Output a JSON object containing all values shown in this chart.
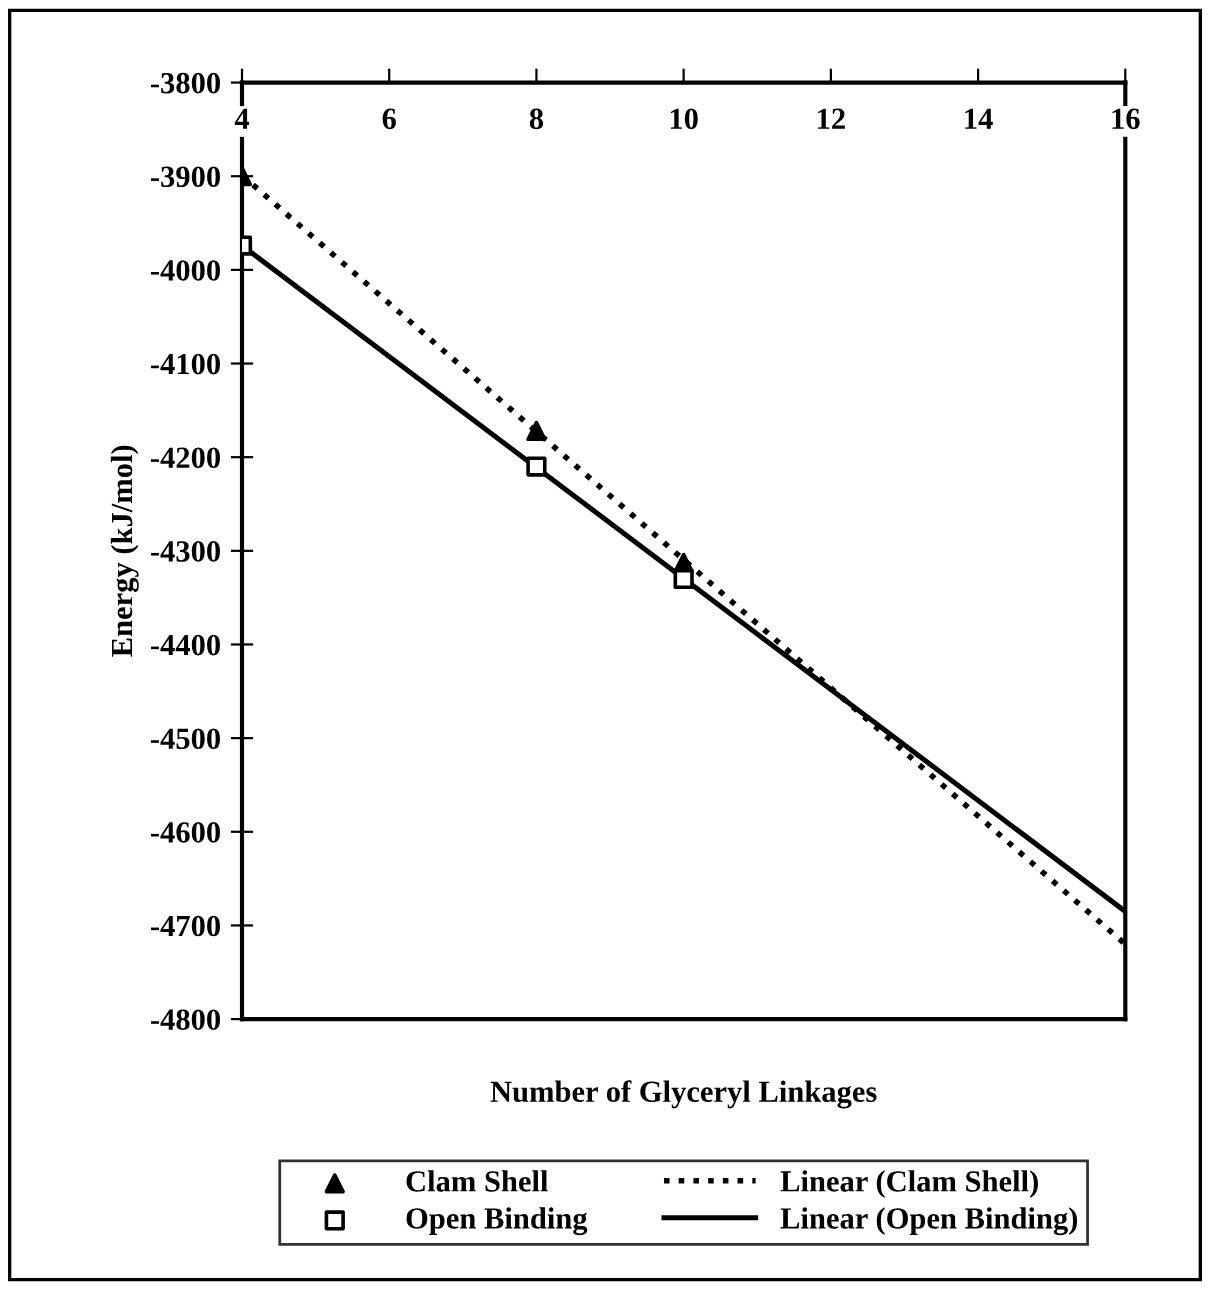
{
  "chart_data": {
    "type": "scatter",
    "xlabel": "Number of Glyceryl Linkages",
    "ylabel": "Energy (kJ/mol)",
    "xlim": [
      4,
      16
    ],
    "xticks": [
      4,
      6,
      8,
      10,
      12,
      14,
      16
    ],
    "ylim": [
      -4800,
      -3800
    ],
    "yticks": [
      -4800,
      -4700,
      -4600,
      -4500,
      -4400,
      -4300,
      -4200,
      -4100,
      -4000,
      -3900,
      -3800
    ],
    "grid": false,
    "legend": "bottom",
    "series": [
      {
        "name": "Clam Shell",
        "marker": "triangle",
        "color": "#000000",
        "x": [
          4,
          8,
          10
        ],
        "values": [
          -3900,
          -4172,
          -4313
        ]
      },
      {
        "name": "Open Binding",
        "marker": "square",
        "color": "#000000",
        "x": [
          4,
          8,
          10
        ],
        "values": [
          -3974,
          -4210,
          -4330
        ]
      },
      {
        "name": "Linear (Clam Shell)",
        "type": "line",
        "line_style": "dotted",
        "color": "#000000",
        "x": [
          4,
          16
        ],
        "values": [
          -3899,
          -4720
        ]
      },
      {
        "name": "Linear (Open Binding)",
        "type": "line",
        "line_style": "solid",
        "color": "#000000",
        "x": [
          4,
          16
        ],
        "values": [
          -3974,
          -4685
        ]
      }
    ]
  }
}
